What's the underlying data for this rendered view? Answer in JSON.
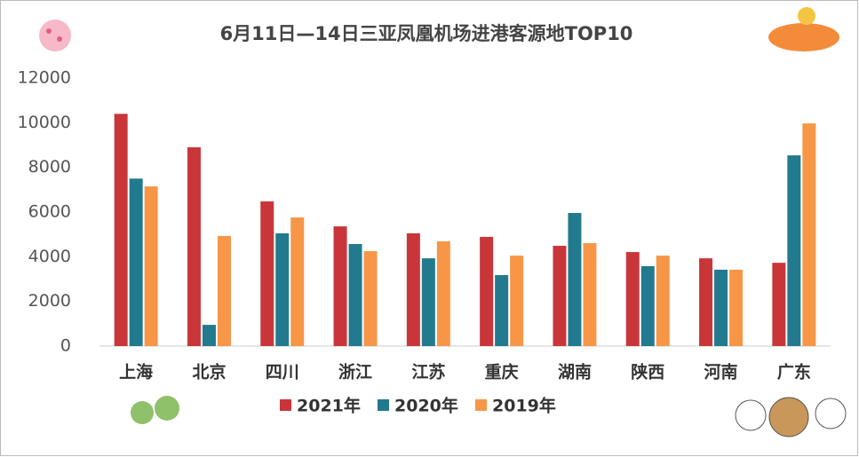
{
  "chart_data": {
    "type": "bar",
    "title": "6月11日—14日三亚凤凰机场进港客源地TOP10",
    "categories": [
      "上海",
      "北京",
      "四川",
      "浙江",
      "江苏",
      "重庆",
      "湖南",
      "陕西",
      "河南",
      "广东"
    ],
    "series": [
      {
        "name": "2021年",
        "color": "#c9363a",
        "values": [
          10400,
          8900,
          6480,
          5360,
          5050,
          4890,
          4490,
          4210,
          3930,
          3730
        ]
      },
      {
        "name": "2020年",
        "color": "#227a8e",
        "values": [
          7500,
          950,
          5050,
          4570,
          3930,
          3180,
          5960,
          3580,
          3420,
          8540
        ]
      },
      {
        "name": "2019年",
        "color": "#f79646",
        "values": [
          7150,
          4930,
          5760,
          4250,
          4690,
          4050,
          4610,
          4050,
          3420,
          9970
        ]
      }
    ],
    "ylim": [
      0,
      12000
    ],
    "yticks": [
      0,
      2000,
      4000,
      6000,
      8000,
      10000,
      12000
    ],
    "grid": false,
    "legend": "bottom"
  }
}
